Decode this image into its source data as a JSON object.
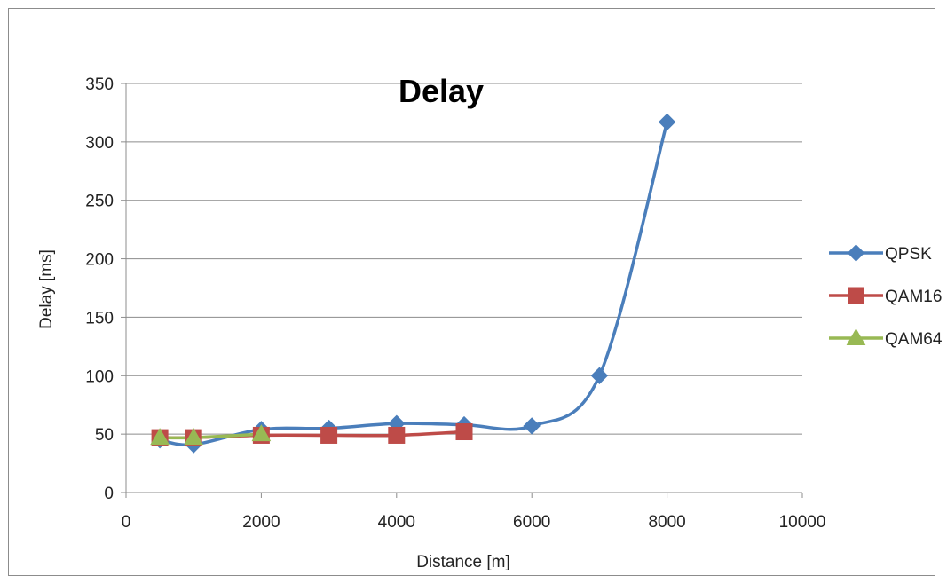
{
  "chart_data": {
    "type": "line",
    "title": "Delay",
    "xlabel": "Distance [m]",
    "ylabel": "Delay [ms]",
    "xlim": [
      0,
      10000
    ],
    "ylim": [
      0,
      350
    ],
    "x_ticks": [
      0,
      2000,
      4000,
      6000,
      8000,
      10000
    ],
    "y_ticks": [
      0,
      50,
      100,
      150,
      200,
      250,
      300,
      350
    ],
    "grid": "horizontal",
    "legend_position": "right",
    "smooth": true,
    "series": [
      {
        "name": "QPSK",
        "color": "#4a7ebb",
        "marker": "diamond",
        "x": [
          500,
          1000,
          2000,
          3000,
          4000,
          5000,
          6000,
          7000,
          8000
        ],
        "y": [
          45,
          41,
          54,
          55,
          59,
          58,
          57,
          100,
          317
        ]
      },
      {
        "name": "QAM16",
        "color": "#be4b48",
        "marker": "square",
        "x": [
          500,
          1000,
          2000,
          3000,
          4000,
          5000
        ],
        "y": [
          47,
          47,
          49,
          49,
          49,
          52
        ]
      },
      {
        "name": "QAM64",
        "color": "#98b954",
        "marker": "triangle",
        "x": [
          500,
          1000,
          2000
        ],
        "y": [
          47,
          47,
          50
        ]
      }
    ]
  }
}
